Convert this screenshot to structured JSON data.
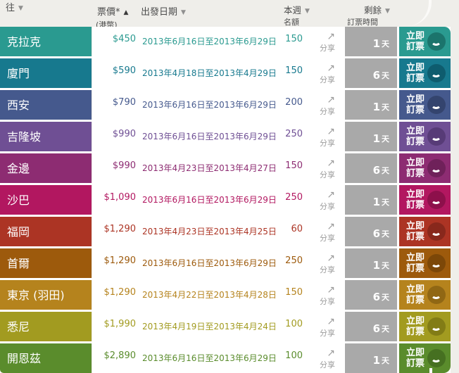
{
  "header": {
    "col_to": {
      "label": "往",
      "arrow": "▼"
    },
    "col_price": {
      "label": "票價*",
      "sub": "(港幣)",
      "arrow": "▲"
    },
    "col_date": {
      "label": "出發日期",
      "arrow": "▼"
    },
    "col_quota": {
      "label": "本週",
      "sub": "名額",
      "arrow": "▼"
    },
    "col_remaining": {
      "label": "剩餘",
      "sub": "訂票時間",
      "arrow": "▼"
    }
  },
  "share_icon": "↗",
  "share_label": "分享",
  "book_label_line1": "立即",
  "book_label_line2": "訂票",
  "day_suffix": "天",
  "colors": {
    "page_bg": "#efeeea",
    "remaining_bg": "#a9a9a9",
    "share_text": "#9b9b9b",
    "header_text": "#4d4d4d"
  },
  "rows": [
    {
      "destination": "克拉克",
      "price": "$450",
      "date_range": "2013年6月16日至2013年6月29日",
      "quota": "150",
      "remaining_days": "1",
      "color": "#2a9a90",
      "dark": "#1b746c"
    },
    {
      "destination": "廈門",
      "price": "$590",
      "date_range": "2013年4月18日至2013年4月29日",
      "quota": "150",
      "remaining_days": "6",
      "color": "#17798e",
      "dark": "#0e5c6e"
    },
    {
      "destination": "西安",
      "price": "$790",
      "date_range": "2013年6月16日至2013年6月29日",
      "quota": "200",
      "remaining_days": "1",
      "color": "#45598d",
      "dark": "#34446e"
    },
    {
      "destination": "吉隆坡",
      "price": "$990",
      "date_range": "2013年6月16日至2013年6月29日",
      "quota": "250",
      "remaining_days": "1",
      "color": "#6f4f94",
      "dark": "#573b77"
    },
    {
      "destination": "金邊",
      "price": "$990",
      "date_range": "2013年4月23日至2013年4月27日",
      "quota": "150",
      "remaining_days": "6",
      "color": "#8d2c72",
      "dark": "#6f215a"
    },
    {
      "destination": "沙巴",
      "price": "$1,090",
      "date_range": "2013年6月16日至2013年6月29日",
      "quota": "250",
      "remaining_days": "1",
      "color": "#b21760",
      "dark": "#8d104b"
    },
    {
      "destination": "福岡",
      "price": "$1,290",
      "date_range": "2013年4月23日至2013年4月25日",
      "quota": "60",
      "remaining_days": "6",
      "color": "#ac3424",
      "dark": "#88281c"
    },
    {
      "destination": "首爾",
      "price": "$1,290",
      "date_range": "2013年6月16日至2013年6月29日",
      "quota": "250",
      "remaining_days": "1",
      "color": "#9d5a0c",
      "dark": "#7c4708"
    },
    {
      "destination": "東京 (羽田)",
      "price": "$1,290",
      "date_range": "2013年4月22日至2013年4月28日",
      "quota": "150",
      "remaining_days": "6",
      "color": "#b5831d",
      "dark": "#906714"
    },
    {
      "destination": "悉尼",
      "price": "$1,990",
      "date_range": "2013年4月19日至2013年4月24日",
      "quota": "100",
      "remaining_days": "6",
      "color": "#a29b20",
      "dark": "#827c16"
    },
    {
      "destination": "開恩茲",
      "price": "$2,890",
      "date_range": "2013年6月16日至2013年6月29日",
      "quota": "100",
      "remaining_days": "1",
      "color": "#5a8c2c",
      "dark": "#467021"
    }
  ]
}
